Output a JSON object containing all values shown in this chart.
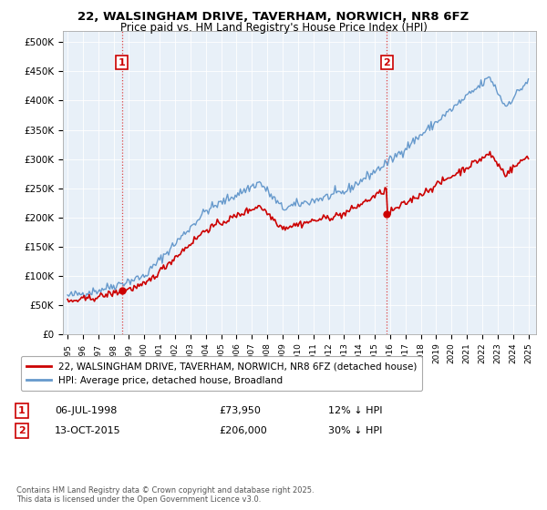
{
  "title_line1": "22, WALSINGHAM DRIVE, TAVERHAM, NORWICH, NR8 6FZ",
  "title_line2": "Price paid vs. HM Land Registry's House Price Index (HPI)",
  "legend_line1": "22, WALSINGHAM DRIVE, TAVERHAM, NORWICH, NR8 6FZ (detached house)",
  "legend_line2": "HPI: Average price, detached house, Broadland",
  "annotation1_label": "1",
  "annotation1_date": "06-JUL-1998",
  "annotation1_price": "£73,950",
  "annotation1_hpi": "12% ↓ HPI",
  "annotation2_label": "2",
  "annotation2_date": "13-OCT-2015",
  "annotation2_price": "£206,000",
  "annotation2_hpi": "30% ↓ HPI",
  "footer": "Contains HM Land Registry data © Crown copyright and database right 2025.\nThis data is licensed under the Open Government Licence v3.0.",
  "red_color": "#cc0000",
  "blue_color": "#6699cc",
  "chart_bg_color": "#e8f0f8",
  "background_color": "#ffffff",
  "grid_color": "#ffffff",
  "vline_color": "#dd4444",
  "ylim_min": 0,
  "ylim_max": 520000,
  "purchase1_year": 1998.54,
  "purchase1_price": 73950,
  "purchase2_year": 2015.79,
  "purchase2_price": 206000
}
